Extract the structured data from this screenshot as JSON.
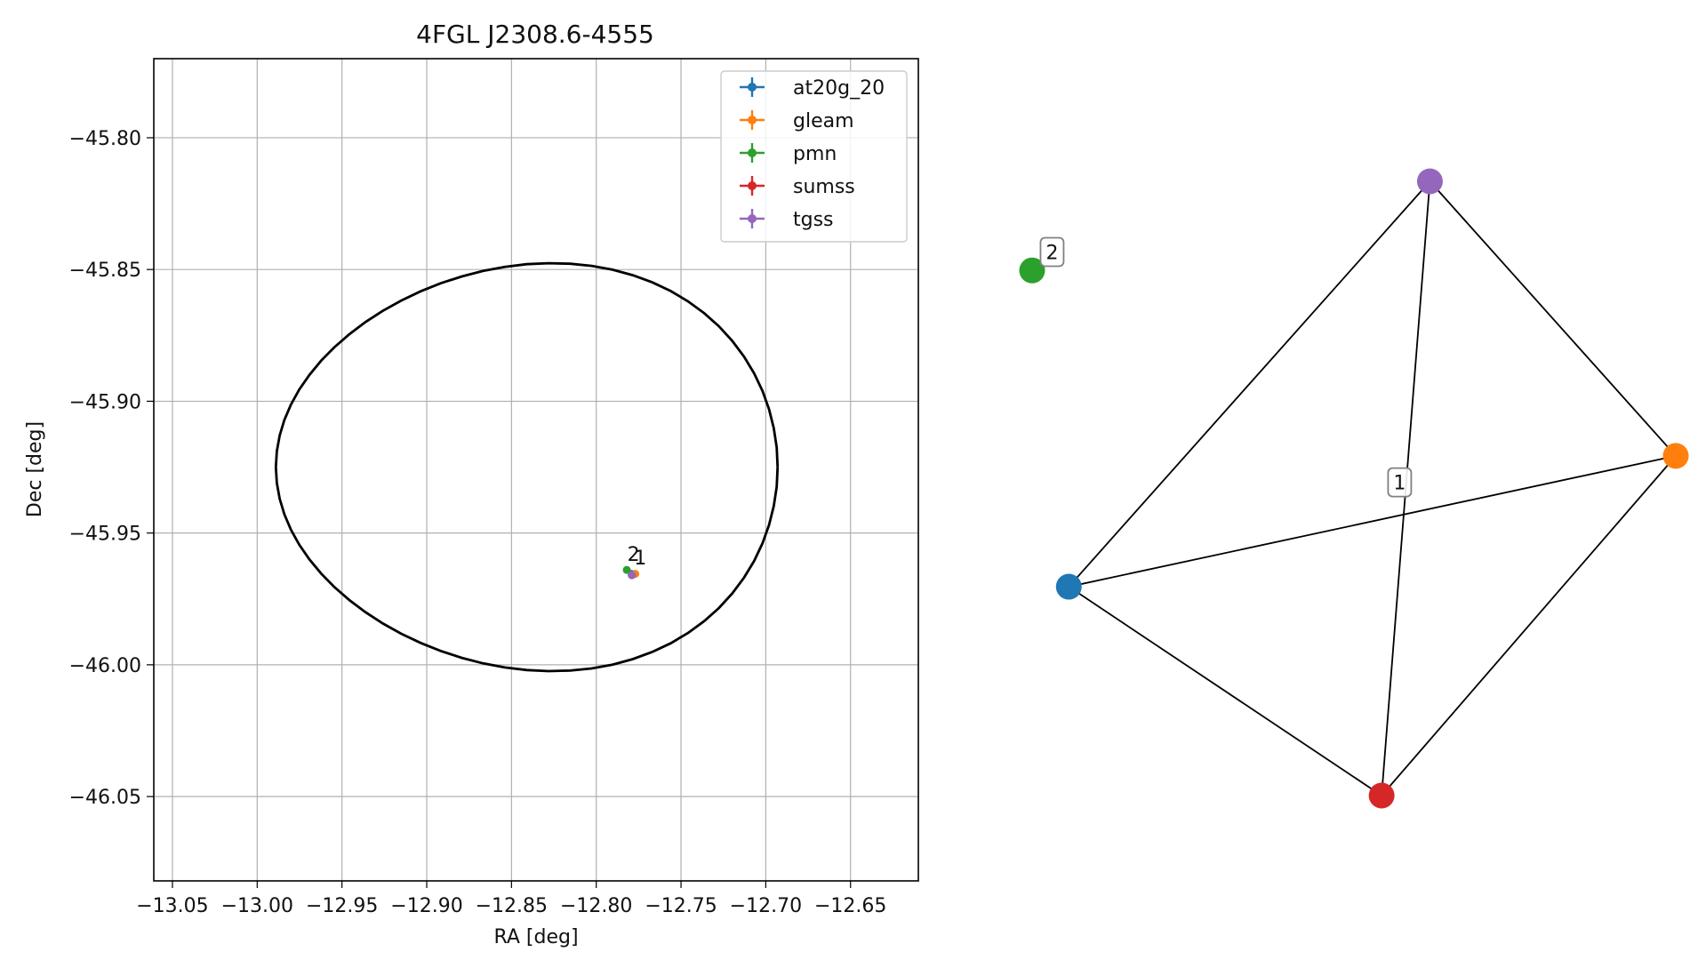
{
  "chart_data": [
    {
      "type": "scatter",
      "title": "4FGL J2308.6-4555",
      "xlabel": "RA [deg]",
      "ylabel": "Dec [deg]",
      "xlim": [
        -13.061,
        -12.61
      ],
      "ylim": [
        -46.082,
        -45.77
      ],
      "xticks": [
        -13.05,
        -13.0,
        -12.95,
        -12.9,
        -12.85,
        -12.8,
        -12.75,
        -12.7,
        -12.65
      ],
      "xtick_labels": [
        "−13.05",
        "−13.00",
        "−12.95",
        "−12.90",
        "−12.85",
        "−12.80",
        "−12.75",
        "−12.70",
        "−12.65"
      ],
      "yticks": [
        -45.8,
        -45.85,
        -45.9,
        -45.95,
        -46.0,
        -46.05
      ],
      "ytick_labels": [
        "−45.80",
        "−45.85",
        "−45.90",
        "−45.95",
        "−46.00",
        "−46.05"
      ],
      "grid": true,
      "legend_position": "top-right",
      "ellipse": {
        "center": [
          -12.841,
          -45.925
        ],
        "semi_axes": [
          0.148,
          0.077
        ],
        "color": "#000000"
      },
      "series": [
        {
          "name": "at20g_20",
          "color": "#1f77b4",
          "x": [
            -12.779
          ],
          "y": [
            -45.9655
          ]
        },
        {
          "name": "gleam",
          "color": "#ff7f0e",
          "x": [
            -12.777
          ],
          "y": [
            -45.9655
          ]
        },
        {
          "name": "pmn",
          "color": "#2ca02c",
          "x": [
            -12.782
          ],
          "y": [
            -45.964
          ]
        },
        {
          "name": "sumss",
          "color": "#d62728",
          "x": [
            -12.779
          ],
          "y": [
            -45.966
          ]
        },
        {
          "name": "tgss",
          "color": "#9467bd",
          "x": [
            -12.779
          ],
          "y": [
            -45.966
          ]
        }
      ],
      "annotations": [
        {
          "text": "2",
          "x": -12.778,
          "y": -45.9605
        },
        {
          "text": "1",
          "x": -12.774,
          "y": -45.962
        }
      ]
    },
    {
      "type": "network",
      "nodes": [
        {
          "id": "at20g_20",
          "color": "#1f77b4",
          "x": 0.057,
          "y": 0.34
        },
        {
          "id": "gleam",
          "color": "#ff7f0e",
          "x": 1.0,
          "y": 0.553
        },
        {
          "id": "pmn",
          "color": "#2ca02c",
          "x": 0.0,
          "y": 0.855
        },
        {
          "id": "sumss",
          "color": "#d62728",
          "x": 0.543,
          "y": 0.0
        },
        {
          "id": "tgss",
          "color": "#9467bd",
          "x": 0.618,
          "y": 1.0
        }
      ],
      "edges": [
        [
          "at20g_20",
          "tgss"
        ],
        [
          "at20g_20",
          "gleam"
        ],
        [
          "at20g_20",
          "sumss"
        ],
        [
          "tgss",
          "gleam"
        ],
        [
          "tgss",
          "sumss"
        ],
        [
          "gleam",
          "sumss"
        ]
      ],
      "group_labels": [
        {
          "text": "1",
          "x": 0.571,
          "y": 0.51
        },
        {
          "text": "2",
          "x": 0.031,
          "y": 0.885
        }
      ]
    }
  ]
}
